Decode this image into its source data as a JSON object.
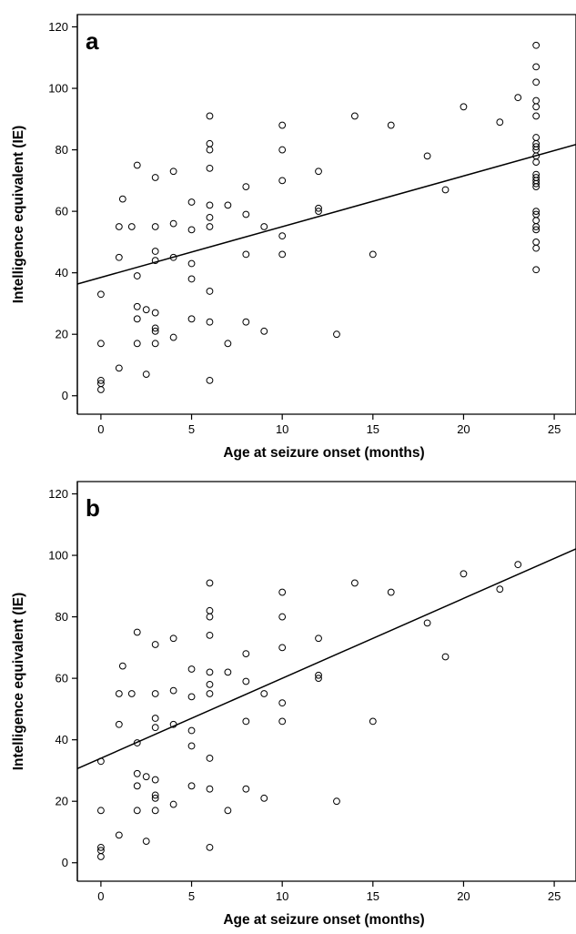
{
  "chart_data": [
    {
      "type": "scatter",
      "panel_label": "a",
      "xlabel": "Age at seizure onset (months)",
      "ylabel": "Intelligence equivalent (IE)",
      "xlim": [
        -1.3,
        26.2
      ],
      "ylim": [
        -6,
        124
      ],
      "xticks": [
        0,
        5,
        10,
        15,
        20,
        25
      ],
      "yticks": [
        0,
        20,
        40,
        60,
        80,
        100,
        120
      ],
      "grid": false,
      "points": [
        [
          0,
          2
        ],
        [
          0,
          4
        ],
        [
          0,
          5
        ],
        [
          0,
          17
        ],
        [
          0,
          33
        ],
        [
          1,
          9
        ],
        [
          1,
          45
        ],
        [
          1,
          55
        ],
        [
          1.2,
          64
        ],
        [
          1.7,
          55
        ],
        [
          2,
          17
        ],
        [
          2,
          25
        ],
        [
          2,
          29
        ],
        [
          2,
          39
        ],
        [
          2,
          75
        ],
        [
          2.5,
          7
        ],
        [
          2.5,
          28
        ],
        [
          3,
          17
        ],
        [
          3,
          21
        ],
        [
          3,
          22
        ],
        [
          3,
          27
        ],
        [
          3,
          44
        ],
        [
          3,
          47
        ],
        [
          3,
          55
        ],
        [
          3,
          71
        ],
        [
          4,
          19
        ],
        [
          4,
          45
        ],
        [
          4,
          56
        ],
        [
          4,
          73
        ],
        [
          5,
          25
        ],
        [
          5,
          38
        ],
        [
          5,
          43
        ],
        [
          5,
          54
        ],
        [
          5,
          63
        ],
        [
          6,
          5
        ],
        [
          6,
          24
        ],
        [
          6,
          34
        ],
        [
          6,
          55
        ],
        [
          6,
          58
        ],
        [
          6,
          62
        ],
        [
          6,
          74
        ],
        [
          6,
          80
        ],
        [
          6,
          82
        ],
        [
          6,
          91
        ],
        [
          7,
          17
        ],
        [
          7,
          62
        ],
        [
          8,
          24
        ],
        [
          8,
          46
        ],
        [
          8,
          59
        ],
        [
          8,
          68
        ],
        [
          9,
          21
        ],
        [
          9,
          55
        ],
        [
          10,
          46
        ],
        [
          10,
          52
        ],
        [
          10,
          70
        ],
        [
          10,
          80
        ],
        [
          10,
          88
        ],
        [
          12,
          60
        ],
        [
          12,
          61
        ],
        [
          12,
          73
        ],
        [
          13,
          20
        ],
        [
          14,
          91
        ],
        [
          15,
          46
        ],
        [
          16,
          88
        ],
        [
          18,
          78
        ],
        [
          19,
          67
        ],
        [
          20,
          94
        ],
        [
          22,
          89
        ],
        [
          23,
          97
        ],
        [
          24,
          41
        ],
        [
          24,
          48
        ],
        [
          24,
          50
        ],
        [
          24,
          54
        ],
        [
          24,
          55
        ],
        [
          24,
          57
        ],
        [
          24,
          59
        ],
        [
          24,
          60
        ],
        [
          24,
          68
        ],
        [
          24,
          69
        ],
        [
          24,
          70
        ],
        [
          24,
          71
        ],
        [
          24,
          72
        ],
        [
          24,
          76
        ],
        [
          24,
          78
        ],
        [
          24,
          80
        ],
        [
          24,
          81
        ],
        [
          24,
          82
        ],
        [
          24,
          84
        ],
        [
          24,
          91
        ],
        [
          24,
          94
        ],
        [
          24,
          96
        ],
        [
          24,
          102
        ],
        [
          24,
          107
        ],
        [
          24,
          114
        ]
      ],
      "fit_line": {
        "intercept": 38.5,
        "slope": 1.65
      }
    },
    {
      "type": "scatter",
      "panel_label": "b",
      "xlabel": "Age at seizure onset (months)",
      "ylabel": "Intelligence equivalent (IE)",
      "xlim": [
        -1.3,
        26.2
      ],
      "ylim": [
        -6,
        124
      ],
      "xticks": [
        0,
        5,
        10,
        15,
        20,
        25
      ],
      "yticks": [
        0,
        20,
        40,
        60,
        80,
        100,
        120
      ],
      "grid": false,
      "points": [
        [
          0,
          2
        ],
        [
          0,
          4
        ],
        [
          0,
          5
        ],
        [
          0,
          17
        ],
        [
          0,
          33
        ],
        [
          1,
          9
        ],
        [
          1,
          45
        ],
        [
          1,
          55
        ],
        [
          1.2,
          64
        ],
        [
          1.7,
          55
        ],
        [
          2,
          17
        ],
        [
          2,
          25
        ],
        [
          2,
          29
        ],
        [
          2,
          39
        ],
        [
          2,
          75
        ],
        [
          2.5,
          7
        ],
        [
          2.5,
          28
        ],
        [
          3,
          17
        ],
        [
          3,
          21
        ],
        [
          3,
          22
        ],
        [
          3,
          27
        ],
        [
          3,
          44
        ],
        [
          3,
          47
        ],
        [
          3,
          55
        ],
        [
          3,
          71
        ],
        [
          4,
          19
        ],
        [
          4,
          45
        ],
        [
          4,
          56
        ],
        [
          4,
          73
        ],
        [
          5,
          25
        ],
        [
          5,
          38
        ],
        [
          5,
          43
        ],
        [
          5,
          54
        ],
        [
          5,
          63
        ],
        [
          6,
          5
        ],
        [
          6,
          24
        ],
        [
          6,
          34
        ],
        [
          6,
          55
        ],
        [
          6,
          58
        ],
        [
          6,
          62
        ],
        [
          6,
          74
        ],
        [
          6,
          80
        ],
        [
          6,
          82
        ],
        [
          6,
          91
        ],
        [
          7,
          17
        ],
        [
          7,
          62
        ],
        [
          8,
          24
        ],
        [
          8,
          46
        ],
        [
          8,
          59
        ],
        [
          8,
          68
        ],
        [
          9,
          21
        ],
        [
          9,
          55
        ],
        [
          10,
          46
        ],
        [
          10,
          52
        ],
        [
          10,
          70
        ],
        [
          10,
          80
        ],
        [
          10,
          88
        ],
        [
          12,
          60
        ],
        [
          12,
          61
        ],
        [
          12,
          73
        ],
        [
          13,
          20
        ],
        [
          14,
          91
        ],
        [
          15,
          46
        ],
        [
          16,
          88
        ],
        [
          18,
          78
        ],
        [
          19,
          67
        ],
        [
          20,
          94
        ],
        [
          22,
          89
        ],
        [
          23,
          97
        ]
      ],
      "fit_line": {
        "intercept": 34,
        "slope": 2.6
      }
    }
  ]
}
